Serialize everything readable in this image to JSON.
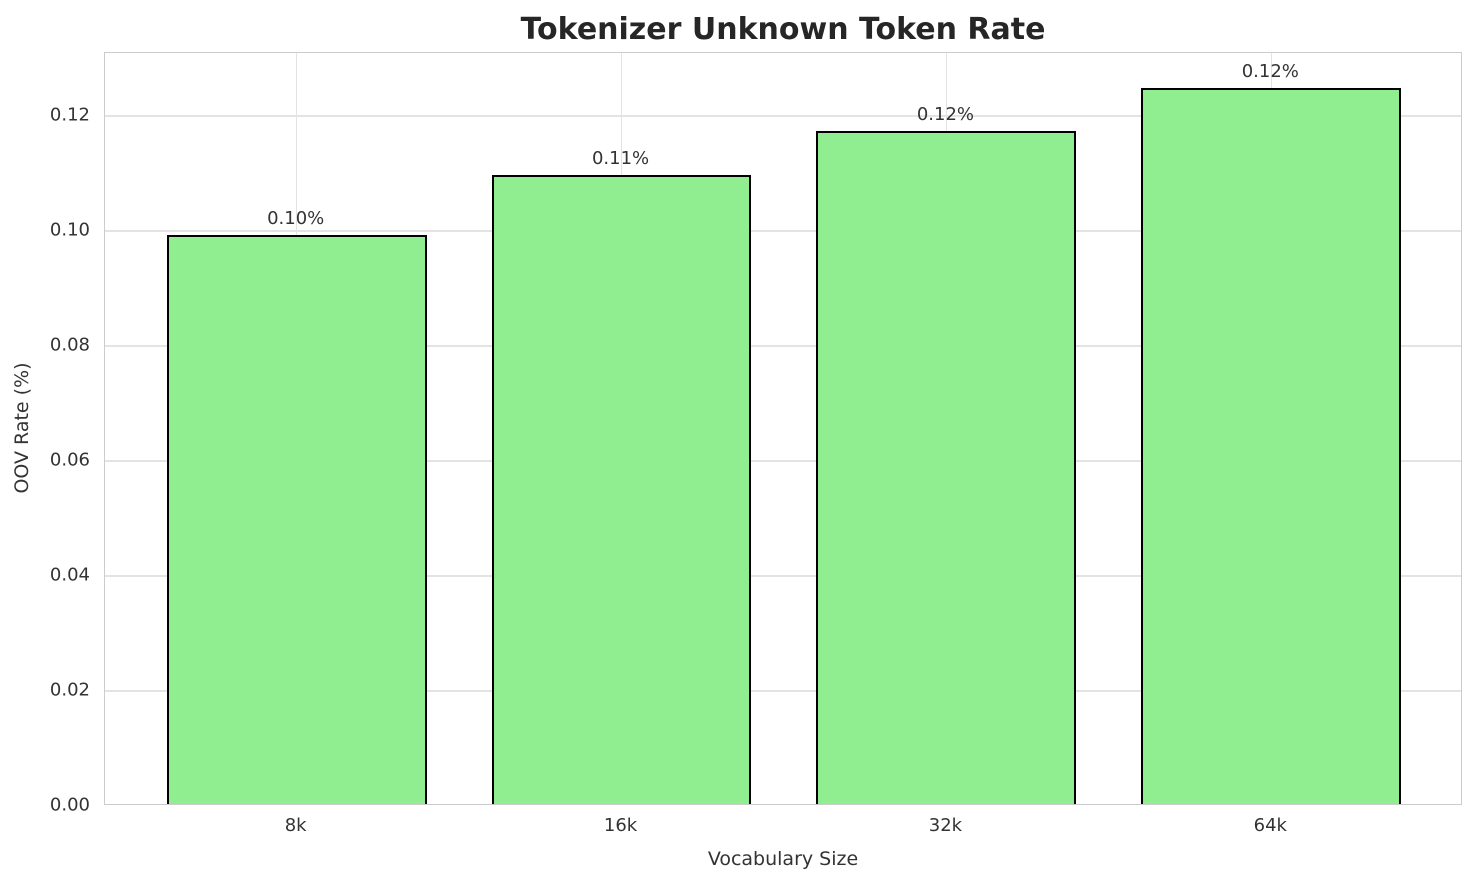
{
  "chart_data": {
    "type": "bar",
    "title": "Tokenizer Unknown Token Rate",
    "xlabel": "Vocabulary Size",
    "ylabel": "OOV Rate (%)",
    "categories": [
      "8k",
      "16k",
      "32k",
      "64k"
    ],
    "values": [
      0.099,
      0.1095,
      0.117,
      0.1245
    ],
    "bar_labels": [
      "0.10%",
      "0.11%",
      "0.12%",
      "0.12%"
    ],
    "ytick_values": [
      0.0,
      0.02,
      0.04,
      0.06,
      0.08,
      0.1,
      0.12
    ],
    "ytick_labels": [
      "0.00",
      "0.02",
      "0.04",
      "0.06",
      "0.08",
      "0.10",
      "0.12"
    ],
    "ylim": [
      0,
      0.131
    ],
    "grid": "on",
    "legend": "none",
    "colors": {
      "bar_fill": "#90EE90",
      "bar_edge": "#000000",
      "gridline": "#e3e3e3",
      "spine": "#cccccc",
      "title_text": "#262626",
      "tick_text": "#333333"
    }
  }
}
